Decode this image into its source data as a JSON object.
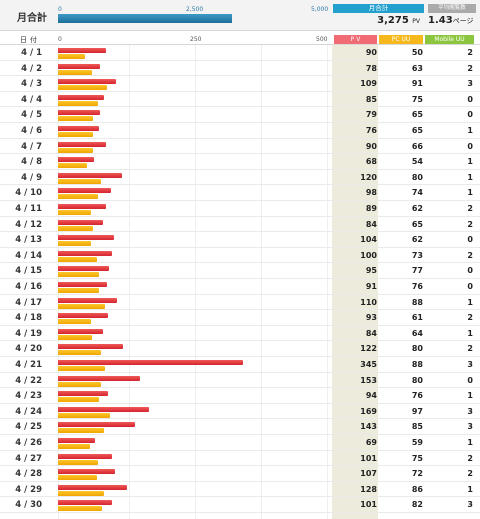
{
  "summary": {
    "label": "月合計",
    "scale_ticks": [
      "0",
      "2,500",
      "5,000"
    ],
    "monthly_fraction": 0.655,
    "pv_title": "月合計",
    "pv_value": "3,275",
    "pv_unit": "PV",
    "avg_title": "平均閲覧数",
    "avg_value": "1.43",
    "avg_unit": "ページ"
  },
  "header": {
    "date_label": "日付",
    "scale_ticks": [
      "0",
      "250",
      "500"
    ],
    "col_pv": "P V",
    "col_pc": "PC UU",
    "col_mobile": "Mobile UU"
  },
  "colors": {
    "pv": "#e03a42",
    "pc": "#f5b51c",
    "pv_header": "#f06b73",
    "pc_header": "#f7b81d",
    "mobile_header": "#8cc63f"
  },
  "chart_data": {
    "type": "bar",
    "xlim": [
      0,
      500
    ],
    "series": [
      {
        "name": "P V"
      },
      {
        "name": "PC UU"
      }
    ],
    "rows": [
      {
        "date": "4 / 1",
        "pv": 90,
        "pc": 50,
        "mobile": 2
      },
      {
        "date": "4 / 2",
        "pv": 78,
        "pc": 63,
        "mobile": 2
      },
      {
        "date": "4 / 3",
        "pv": 109,
        "pc": 91,
        "mobile": 3
      },
      {
        "date": "4 / 4",
        "pv": 85,
        "pc": 75,
        "mobile": 0
      },
      {
        "date": "4 / 5",
        "pv": 79,
        "pc": 65,
        "mobile": 0
      },
      {
        "date": "4 / 6",
        "pv": 76,
        "pc": 65,
        "mobile": 1
      },
      {
        "date": "4 / 7",
        "pv": 90,
        "pc": 66,
        "mobile": 0
      },
      {
        "date": "4 / 8",
        "pv": 68,
        "pc": 54,
        "mobile": 1
      },
      {
        "date": "4 / 9",
        "pv": 120,
        "pc": 80,
        "mobile": 1
      },
      {
        "date": "4 / 10",
        "pv": 98,
        "pc": 74,
        "mobile": 1
      },
      {
        "date": "4 / 11",
        "pv": 89,
        "pc": 62,
        "mobile": 2
      },
      {
        "date": "4 / 12",
        "pv": 84,
        "pc": 65,
        "mobile": 2
      },
      {
        "date": "4 / 13",
        "pv": 104,
        "pc": 62,
        "mobile": 0
      },
      {
        "date": "4 / 14",
        "pv": 100,
        "pc": 73,
        "mobile": 2
      },
      {
        "date": "4 / 15",
        "pv": 95,
        "pc": 77,
        "mobile": 0
      },
      {
        "date": "4 / 16",
        "pv": 91,
        "pc": 76,
        "mobile": 0
      },
      {
        "date": "4 / 17",
        "pv": 110,
        "pc": 88,
        "mobile": 1
      },
      {
        "date": "4 / 18",
        "pv": 93,
        "pc": 61,
        "mobile": 2
      },
      {
        "date": "4 / 19",
        "pv": 84,
        "pc": 64,
        "mobile": 1
      },
      {
        "date": "4 / 20",
        "pv": 122,
        "pc": 80,
        "mobile": 2
      },
      {
        "date": "4 / 21",
        "pv": 345,
        "pc": 88,
        "mobile": 3
      },
      {
        "date": "4 / 22",
        "pv": 153,
        "pc": 80,
        "mobile": 0
      },
      {
        "date": "4 / 23",
        "pv": 94,
        "pc": 76,
        "mobile": 1
      },
      {
        "date": "4 / 24",
        "pv": 169,
        "pc": 97,
        "mobile": 3
      },
      {
        "date": "4 / 25",
        "pv": 143,
        "pc": 85,
        "mobile": 3
      },
      {
        "date": "4 / 26",
        "pv": 69,
        "pc": 59,
        "mobile": 1
      },
      {
        "date": "4 / 27",
        "pv": 101,
        "pc": 75,
        "mobile": 2
      },
      {
        "date": "4 / 28",
        "pv": 107,
        "pc": 72,
        "mobile": 2
      },
      {
        "date": "4 / 29",
        "pv": 128,
        "pc": 86,
        "mobile": 1
      },
      {
        "date": "4 / 30",
        "pv": 101,
        "pc": 82,
        "mobile": 3
      }
    ]
  }
}
